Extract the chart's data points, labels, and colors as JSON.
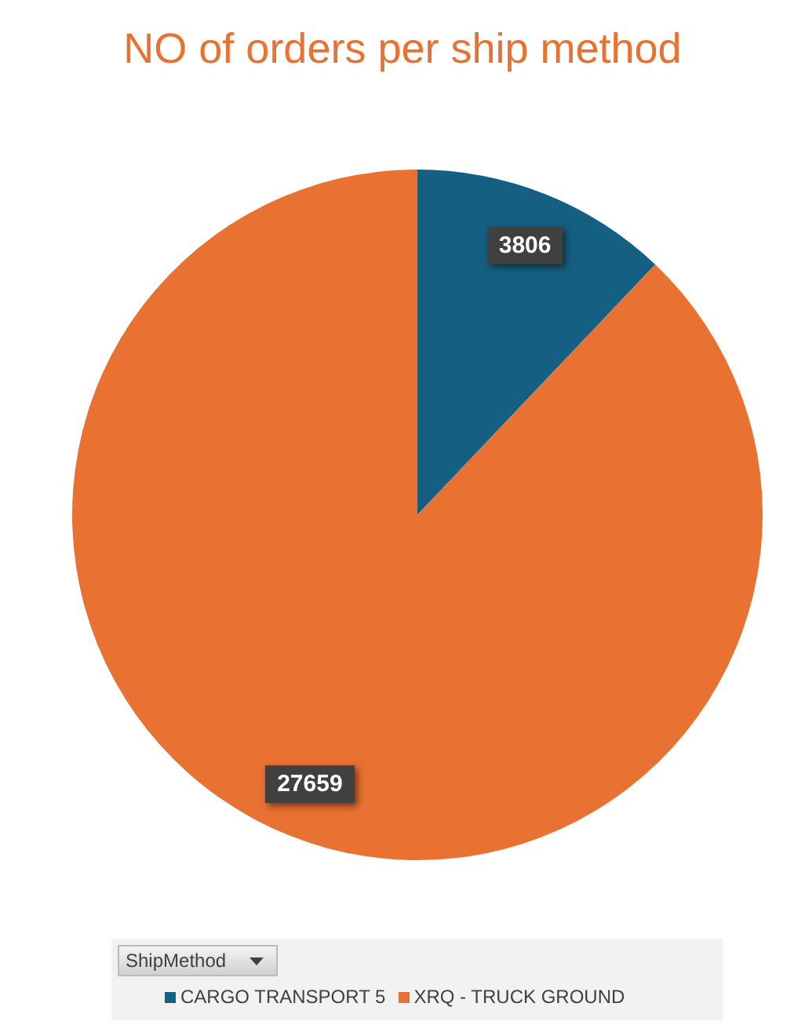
{
  "chart_data": {
    "type": "pie",
    "title": "NO of orders per ship method",
    "legend_title": "ShipMethod",
    "categories": [
      "CARGO TRANSPORT 5",
      "XRQ - TRUCK GROUND"
    ],
    "values": [
      3806,
      27659
    ],
    "colors": [
      "#156082",
      "#e97132"
    ],
    "data_labels": true,
    "legend": "bottom"
  }
}
